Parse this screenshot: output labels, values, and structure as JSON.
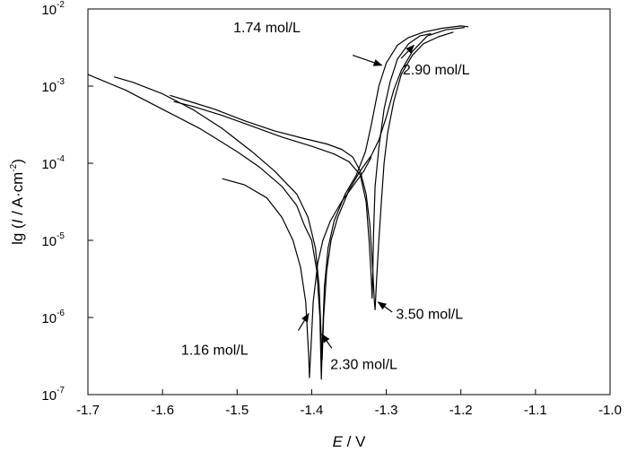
{
  "chart_data": {
    "type": "line",
    "title": "",
    "xlabel_italic": "E",
    "xlabel_rest": " / V",
    "ylabel_prefix": "lg (",
    "ylabel_italic": "I",
    "ylabel_suffix": " / A·cm",
    "ylabel_sup": "-2",
    "ylabel_close": ")",
    "xlim": [
      -1.7,
      -1.0
    ],
    "ylim_log10": [
      -7,
      -2
    ],
    "y_scale": "log",
    "grid": false,
    "legend": "none",
    "x_ticks": [
      {
        "value": -1.7,
        "label": "-1.7"
      },
      {
        "value": -1.6,
        "label": "-1.6"
      },
      {
        "value": -1.5,
        "label": "-1.5"
      },
      {
        "value": -1.4,
        "label": "-1.4"
      },
      {
        "value": -1.3,
        "label": "-1.3"
      },
      {
        "value": -1.2,
        "label": "-1.2"
      },
      {
        "value": -1.1,
        "label": "-1.1"
      },
      {
        "value": -1.0,
        "label": "-1.0"
      }
    ],
    "y_ticks": [
      {
        "exp": -7,
        "base": "10",
        "sup": "-7"
      },
      {
        "exp": -6,
        "base": "10",
        "sup": "-6"
      },
      {
        "exp": -5,
        "base": "10",
        "sup": "-5"
      },
      {
        "exp": -4,
        "base": "10",
        "sup": "-4"
      },
      {
        "exp": -3,
        "base": "10",
        "sup": "-3"
      },
      {
        "exp": -2,
        "base": "10",
        "sup": "-2"
      }
    ],
    "series": [
      {
        "label": "1.16 mol/L",
        "color": "#000000",
        "points": [
          [
            -1.52,
            -4.2
          ],
          [
            -1.49,
            -4.28
          ],
          [
            -1.46,
            -4.45
          ],
          [
            -1.44,
            -4.7
          ],
          [
            -1.425,
            -5.0
          ],
          [
            -1.415,
            -5.35
          ],
          [
            -1.408,
            -5.8
          ],
          [
            -1.404,
            -6.5
          ],
          [
            -1.403,
            -6.78
          ],
          [
            -1.401,
            -6.4
          ],
          [
            -1.398,
            -5.8
          ],
          [
            -1.392,
            -5.3
          ],
          [
            -1.385,
            -5.0
          ],
          [
            -1.375,
            -4.75
          ],
          [
            -1.36,
            -4.5
          ],
          [
            -1.345,
            -4.3
          ],
          [
            -1.33,
            -4.1
          ],
          [
            -1.32,
            -3.92
          ]
        ]
      },
      {
        "label": "2.30 mol/L",
        "color": "#000000",
        "points": [
          [
            -1.7,
            -2.85
          ],
          [
            -1.65,
            -3.05
          ],
          [
            -1.6,
            -3.3
          ],
          [
            -1.55,
            -3.55
          ],
          [
            -1.5,
            -3.85
          ],
          [
            -1.47,
            -4.05
          ],
          [
            -1.44,
            -4.3
          ],
          [
            -1.42,
            -4.55
          ],
          [
            -1.41,
            -4.8
          ],
          [
            -1.4,
            -5.0
          ],
          [
            -1.393,
            -5.4
          ],
          [
            -1.389,
            -6.0
          ],
          [
            -1.387,
            -6.8
          ],
          [
            -1.386,
            -6.4
          ],
          [
            -1.383,
            -5.6
          ],
          [
            -1.378,
            -5.1
          ],
          [
            -1.37,
            -4.75
          ],
          [
            -1.355,
            -4.4
          ],
          [
            -1.34,
            -4.15
          ],
          [
            -1.328,
            -3.85
          ],
          [
            -1.32,
            -3.5
          ],
          [
            -1.315,
            -3.25
          ],
          [
            -1.31,
            -3.0
          ],
          [
            -1.3,
            -2.7
          ],
          [
            -1.285,
            -2.47
          ],
          [
            -1.27,
            -2.37
          ],
          [
            -1.25,
            -2.3
          ],
          [
            -1.225,
            -2.25
          ],
          [
            -1.2,
            -2.22
          ],
          [
            -1.19,
            -2.23
          ]
        ]
      },
      {
        "label": "2.90 mol/L",
        "color": "#000000",
        "points": [
          [
            -1.665,
            -2.88
          ],
          [
            -1.64,
            -2.95
          ],
          [
            -1.6,
            -3.1
          ],
          [
            -1.56,
            -3.3
          ],
          [
            -1.52,
            -3.55
          ],
          [
            -1.48,
            -3.85
          ],
          [
            -1.45,
            -4.1
          ],
          [
            -1.42,
            -4.4
          ],
          [
            -1.405,
            -4.7
          ],
          [
            -1.395,
            -5.1
          ],
          [
            -1.39,
            -5.6
          ],
          [
            -1.387,
            -6.3
          ],
          [
            -1.386,
            -6.55
          ],
          [
            -1.384,
            -6.0
          ],
          [
            -1.38,
            -5.4
          ],
          [
            -1.374,
            -5.0
          ],
          [
            -1.365,
            -4.7
          ],
          [
            -1.35,
            -4.35
          ],
          [
            -1.335,
            -4.1
          ],
          [
            -1.32,
            -3.9
          ],
          [
            -1.31,
            -3.7
          ],
          [
            -1.3,
            -3.4
          ],
          [
            -1.29,
            -3.05
          ],
          [
            -1.28,
            -2.8
          ],
          [
            -1.265,
            -2.55
          ],
          [
            -1.245,
            -2.35
          ],
          [
            -1.22,
            -2.27
          ],
          [
            -1.195,
            -2.24
          ]
        ]
      },
      {
        "label": "3.50 mol/L",
        "color": "#000000",
        "points": [
          [
            -1.59,
            -3.12
          ],
          [
            -1.57,
            -3.18
          ],
          [
            -1.53,
            -3.3
          ],
          [
            -1.49,
            -3.45
          ],
          [
            -1.45,
            -3.58
          ],
          [
            -1.41,
            -3.68
          ],
          [
            -1.38,
            -3.75
          ],
          [
            -1.36,
            -3.82
          ],
          [
            -1.345,
            -3.92
          ],
          [
            -1.335,
            -4.1
          ],
          [
            -1.327,
            -4.4
          ],
          [
            -1.322,
            -4.8
          ],
          [
            -1.318,
            -5.4
          ],
          [
            -1.316,
            -5.8
          ],
          [
            -1.315,
            -5.9
          ],
          [
            -1.313,
            -5.5
          ],
          [
            -1.31,
            -5.0
          ],
          [
            -1.307,
            -4.55
          ],
          [
            -1.303,
            -4.0
          ],
          [
            -1.298,
            -3.6
          ],
          [
            -1.29,
            -3.2
          ],
          [
            -1.28,
            -2.85
          ],
          [
            -1.265,
            -2.6
          ],
          [
            -1.25,
            -2.45
          ],
          [
            -1.23,
            -2.36
          ],
          [
            -1.21,
            -2.3
          ]
        ]
      },
      {
        "label": "1.74 mol/L",
        "color": "#000000",
        "points": [
          [
            -1.585,
            -3.2
          ],
          [
            -1.56,
            -3.26
          ],
          [
            -1.52,
            -3.38
          ],
          [
            -1.48,
            -3.52
          ],
          [
            -1.44,
            -3.66
          ],
          [
            -1.4,
            -3.78
          ],
          [
            -1.37,
            -3.88
          ],
          [
            -1.35,
            -3.98
          ],
          [
            -1.335,
            -4.15
          ],
          [
            -1.327,
            -4.5
          ],
          [
            -1.323,
            -5.0
          ],
          [
            -1.32,
            -5.5
          ],
          [
            -1.319,
            -5.75
          ],
          [
            -1.318,
            -5.4
          ],
          [
            -1.317,
            -4.9
          ],
          [
            -1.315,
            -4.3
          ],
          [
            -1.31,
            -3.8
          ],
          [
            -1.303,
            -3.3
          ],
          [
            -1.295,
            -2.95
          ],
          [
            -1.285,
            -2.65
          ],
          [
            -1.27,
            -2.45
          ],
          [
            -1.255,
            -2.35
          ],
          [
            -1.24,
            -2.32
          ]
        ]
      }
    ],
    "annotations": [
      {
        "text": "1.74 mol/L",
        "tx": -1.505,
        "ty": -2.3,
        "anchor": "start",
        "arrow_from": [
          -1.345,
          -2.6
        ],
        "arrow_to": [
          -1.306,
          -2.73
        ]
      },
      {
        "text": "2.90 mol/L",
        "tx": -1.278,
        "ty": -2.85,
        "anchor": "start",
        "arrow_from": [
          -1.28,
          -2.64
        ],
        "arrow_to": [
          -1.263,
          -2.47
        ]
      },
      {
        "text": "3.50 mol/L",
        "tx": -1.287,
        "ty": -6.02,
        "anchor": "start",
        "arrow_from": [
          -1.292,
          -5.93
        ],
        "arrow_to": [
          -1.311,
          -5.8
        ]
      },
      {
        "text": "1.16 mol/L",
        "tx": -1.575,
        "ty": -6.48,
        "anchor": "start",
        "arrow_from": [
          -1.418,
          -6.17
        ],
        "arrow_to": [
          -1.404,
          -5.95
        ]
      },
      {
        "text": "2.30 mol/L",
        "tx": -1.375,
        "ty": -6.67,
        "anchor": "start",
        "arrow_from": [
          -1.373,
          -6.4
        ],
        "arrow_to": [
          -1.386,
          -6.22
        ]
      }
    ]
  }
}
